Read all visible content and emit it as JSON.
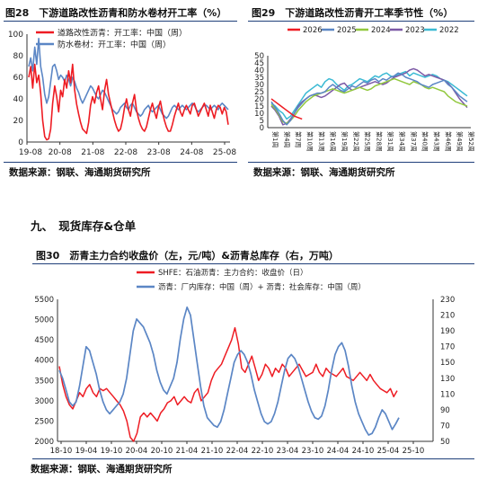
{
  "panel1": {
    "title": "图28　下游道路改性沥青和防水卷材开工率（%）",
    "source": "数据来源：钢联、海通期货研究所"
  },
  "panel2": {
    "title": "图29　下游道路改性沥青开工率季节性（%）",
    "source": "数据来源：钢联、海通期货研究所"
  },
  "section_heading": "九、　现货库存&仓单",
  "panel3": {
    "title": "图30　沥青主力合约收盘价（左，元/吨）&沥青总库存（右，万吨）",
    "source": "数据来源：钢联、海通期货研究所"
  },
  "colors": {
    "red": "#ee1c23",
    "blue": "#5b86c5",
    "green": "#92c83e",
    "gray": "#a6a6a6",
    "purple": "#7c5aa6",
    "teal": "#3bbad4",
    "rule": "#1f3f7a"
  },
  "chart_data": [
    {
      "type": "line",
      "title": "图28 下游道路改性沥青和防水卷材开工率（%）",
      "x_ticks": [
        "19-08",
        "20-08",
        "21-08",
        "22-08",
        "23-08",
        "24-08",
        "25-08"
      ],
      "ylim": [
        0,
        100
      ],
      "y_ticks": [
        0,
        20,
        40,
        60,
        80,
        100
      ],
      "legend": "top-left",
      "series": [
        {
          "name": "道路改性沥青：开工率：中国（周）",
          "color": "#ee1c23",
          "values": [
            60,
            70,
            50,
            72,
            55,
            62,
            45,
            20,
            5,
            2,
            3,
            12,
            36,
            52,
            42,
            28,
            48,
            42,
            58,
            50,
            66,
            55,
            72,
            48,
            35,
            26,
            18,
            12,
            10,
            8,
            18,
            34,
            42,
            36,
            46,
            52,
            40,
            30,
            48,
            58,
            44,
            36,
            28,
            20,
            14,
            10,
            12,
            20,
            32,
            40,
            30,
            24,
            36,
            44,
            30,
            22,
            16,
            12,
            10,
            14,
            22,
            30,
            36,
            28,
            22,
            32,
            38,
            28,
            20,
            14,
            10,
            10,
            16,
            24,
            30,
            36,
            28,
            24,
            30,
            34,
            30,
            26,
            34,
            36,
            30,
            24,
            28,
            32,
            36,
            30,
            24,
            34,
            28,
            22,
            30,
            34,
            32,
            26,
            32,
            28,
            16
          ]
        },
        {
          "name": "防水卷材：开工率：中国（周）",
          "color": "#5b86c5",
          "values": [
            70,
            78,
            66,
            88,
            72,
            96,
            70,
            60,
            44,
            36,
            42,
            56,
            70,
            72,
            66,
            58,
            62,
            60,
            56,
            62,
            58,
            52,
            60,
            56,
            50,
            46,
            40,
            36,
            40,
            44,
            48,
            52,
            50,
            46,
            42,
            40,
            44,
            48,
            46,
            42,
            38,
            34,
            30,
            28,
            26,
            28,
            32,
            34,
            36,
            32,
            30,
            34,
            36,
            32,
            28,
            26,
            24,
            26,
            30,
            32,
            34,
            30,
            28,
            30,
            32,
            34,
            30,
            26,
            24,
            22,
            24,
            28,
            32,
            34,
            32,
            30,
            32,
            34,
            32,
            30,
            32,
            34,
            36,
            34,
            30,
            28,
            30,
            32,
            34,
            34,
            32,
            30,
            32,
            34,
            32,
            30,
            34,
            36,
            34,
            32,
            30
          ]
        }
      ]
    },
    {
      "type": "line",
      "title": "图29 下游道路改性沥青开工率季节性（%）",
      "ylim": [
        0,
        50
      ],
      "y_ticks": [
        0,
        5,
        10,
        15,
        20,
        25,
        30,
        35,
        40,
        45,
        50
      ],
      "x_ticks": [
        "第1周",
        "第4周",
        "第7周",
        "第10周",
        "第13周",
        "第16周",
        "第19周",
        "第22周",
        "第25周",
        "第28周",
        "第31周",
        "第34周",
        "第37周",
        "第40周",
        "第43周",
        "第46周",
        "第49周",
        "第52周"
      ],
      "legend": "top",
      "series": [
        {
          "name": "2026",
          "color": "#ee1c23",
          "values": [
            20,
            18,
            16,
            14,
            12,
            10,
            8,
            7,
            6
          ]
        },
        {
          "name": "2025",
          "color": "#5b86c5",
          "values": [
            18,
            14,
            10,
            5,
            2,
            5,
            10,
            14,
            17,
            20,
            22,
            23,
            24,
            24,
            25,
            28,
            30,
            28,
            26,
            25,
            27,
            29,
            28,
            30,
            32,
            31,
            33,
            34,
            32,
            34,
            33,
            35,
            36,
            38,
            37,
            35,
            34,
            33,
            32,
            30,
            29,
            28,
            30,
            31,
            32,
            33,
            30,
            28,
            25,
            22,
            20,
            18
          ]
        },
        {
          "name": "2024",
          "color": "#92c83e",
          "values": [
            16,
            13,
            9,
            4,
            3,
            5,
            8,
            12,
            15,
            18,
            20,
            22,
            23,
            24,
            25,
            26,
            27,
            26,
            25,
            24,
            25,
            26,
            27,
            28,
            27,
            26,
            27,
            29,
            30,
            31,
            32,
            33,
            34,
            33,
            32,
            31,
            30,
            32,
            31,
            30,
            28,
            27,
            28,
            27,
            26,
            25,
            22,
            20,
            18,
            17,
            16,
            15
          ]
        },
        {
          "name": "2023",
          "color": "#7c5aa6",
          "values": [
            15,
            12,
            8,
            2,
            3,
            6,
            10,
            15,
            18,
            20,
            22,
            23,
            22,
            21,
            22,
            24,
            26,
            28,
            30,
            31,
            28,
            26,
            27,
            28,
            29,
            30,
            31,
            32,
            31,
            30,
            31,
            33,
            35,
            36,
            37,
            38,
            40,
            41,
            40,
            38,
            36,
            37,
            36,
            35,
            34,
            33,
            31,
            28,
            24,
            20,
            17,
            14
          ]
        },
        {
          "name": "2022",
          "color": "#3bbad4",
          "values": [
            17,
            15,
            12,
            10,
            6,
            8,
            12,
            16,
            20,
            24,
            26,
            28,
            30,
            28,
            32,
            34,
            33,
            30,
            28,
            26,
            29,
            30,
            32,
            34,
            33,
            32,
            34,
            36,
            35,
            37,
            38,
            36,
            35,
            37,
            38,
            39,
            36,
            38,
            37,
            36,
            35,
            36,
            37,
            36,
            34,
            33,
            32,
            30,
            28,
            26,
            24,
            22
          ]
        }
      ]
    },
    {
      "type": "line",
      "title": "图30 沥青主力合约收盘价（左，元/吨）&沥青总库存（右，万吨）",
      "x_ticks": [
        "18-10",
        "19-04",
        "19-10",
        "20-04",
        "20-10",
        "21-04",
        "21-10",
        "22-04",
        "22-10",
        "23-04",
        "23-10",
        "24-04",
        "24-10",
        "25-04",
        "25-10"
      ],
      "ylim_left": [
        2000,
        5500
      ],
      "y_ticks_left": [
        2000,
        2500,
        3000,
        3500,
        4000,
        4500,
        5000,
        5500
      ],
      "ylim_right": [
        50,
        230
      ],
      "y_ticks_right": [
        50,
        70,
        90,
        110,
        130,
        150,
        170,
        190,
        210,
        230
      ],
      "legend": "top",
      "series": [
        {
          "name": "SHFE：石油沥青：主力合约：收盘价（日）",
          "axis": "left",
          "color": "#ee1c23",
          "values": [
            3850,
            3400,
            3100,
            2900,
            2800,
            3000,
            3200,
            3100,
            3300,
            3400,
            3200,
            3100,
            3300,
            3250,
            3300,
            3200,
            3100,
            3000,
            2900,
            2750,
            2500,
            2100,
            2000,
            2200,
            2600,
            2700,
            2600,
            2700,
            2600,
            2500,
            2700,
            2800,
            2950,
            3000,
            3100,
            2900,
            3000,
            3100,
            3000,
            2950,
            3200,
            3300,
            3000,
            3100,
            3200,
            3500,
            3700,
            3800,
            3900,
            4100,
            4300,
            4500,
            4800,
            4400,
            3800,
            3700,
            3900,
            4100,
            3800,
            3500,
            3650,
            3900,
            3800,
            3600,
            3800,
            3700,
            3900,
            3800,
            3600,
            3700,
            3800,
            3900,
            3750,
            3600,
            3650,
            3700,
            3900,
            3700,
            3600,
            3800,
            3700,
            3650,
            3600,
            3700,
            3800,
            3600,
            3550,
            3500,
            3600,
            3700,
            3600,
            3500,
            3650,
            3500,
            3400,
            3300,
            3250,
            3200,
            3300,
            3100,
            3250
          ]
        },
        {
          "name": "沥青：厂内库存：中国（周）+ 沥青：社会库存：中国（周）",
          "axis": "right",
          "color": "#5b86c5",
          "values": [
            140,
            130,
            115,
            100,
            95,
            100,
            120,
            145,
            170,
            165,
            150,
            135,
            115,
            100,
            90,
            85,
            90,
            95,
            100,
            110,
            130,
            160,
            190,
            205,
            200,
            195,
            185,
            175,
            160,
            140,
            125,
            115,
            110,
            120,
            130,
            150,
            180,
            205,
            220,
            210,
            180,
            150,
            120,
            95,
            80,
            75,
            70,
            68,
            75,
            90,
            110,
            130,
            150,
            160,
            165,
            160,
            150,
            135,
            115,
            100,
            85,
            75,
            72,
            75,
            85,
            100,
            120,
            140,
            155,
            160,
            155,
            145,
            130,
            115,
            100,
            88,
            80,
            78,
            82,
            95,
            115,
            140,
            160,
            170,
            175,
            165,
            145,
            120,
            100,
            85,
            75,
            65,
            58,
            60,
            68,
            80,
            90,
            85,
            75,
            65,
            72,
            80
          ]
        }
      ]
    }
  ]
}
